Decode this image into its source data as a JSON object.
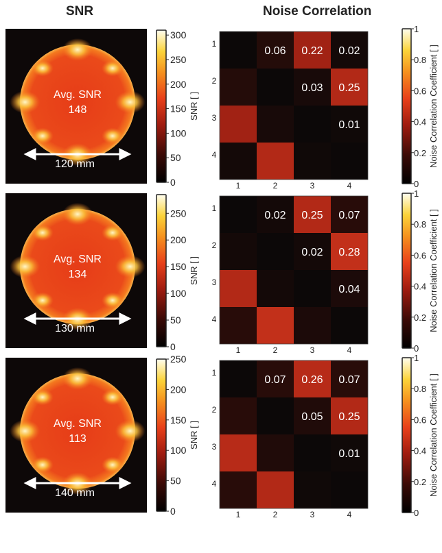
{
  "titles": {
    "snr": "SNR",
    "noise": "Noise Correlation"
  },
  "colors": {
    "background": "#0d0808",
    "phantom": "#e8401a",
    "arrow": "#ffffff"
  },
  "snr_colorbar_label": "SNR [ ]",
  "nc_colorbar_label": "Noise Correlation Coefficient [ ]",
  "rows": [
    {
      "avg_label": "Avg. SNR",
      "avg_value": "148",
      "diameter": "120 mm",
      "snr_ticks": [
        "0",
        "50",
        "100",
        "150",
        "200",
        "250",
        "300"
      ],
      "snr_max": 310,
      "nc_ticks": [
        "0",
        "0.2",
        "0.4",
        "0.6",
        "0.8",
        "1"
      ],
      "matrix_axis": [
        "1",
        "2",
        "3",
        "4"
      ],
      "matrix_labels": [
        [
          "",
          "0.06",
          "0.22",
          "0.02"
        ],
        [
          "",
          "",
          "0.03",
          "0.25"
        ],
        [
          "",
          "",
          "",
          "0.01"
        ],
        [
          "",
          "",
          "",
          ""
        ]
      ],
      "matrix_values": [
        [
          0.0,
          0.06,
          0.22,
          0.02
        ],
        [
          0.06,
          0.0,
          0.03,
          0.25
        ],
        [
          0.22,
          0.03,
          0.0,
          0.01
        ],
        [
          0.02,
          0.25,
          0.01,
          0.0
        ]
      ]
    },
    {
      "avg_label": "Avg. SNR",
      "avg_value": "134",
      "diameter": "130 mm",
      "snr_ticks": [
        "0",
        "50",
        "100",
        "150",
        "200",
        "250"
      ],
      "snr_max": 285,
      "nc_ticks": [
        "0",
        "0.2",
        "0.4",
        "0.6",
        "0.8",
        "1"
      ],
      "matrix_axis": [
        "1",
        "2",
        "3",
        "4"
      ],
      "matrix_labels": [
        [
          "",
          "0.02",
          "0.25",
          "0.07"
        ],
        [
          "",
          "",
          "0.02",
          "0.28"
        ],
        [
          "",
          "",
          "",
          "0.04"
        ],
        [
          "",
          "",
          "",
          ""
        ]
      ],
      "matrix_values": [
        [
          0.0,
          0.02,
          0.25,
          0.07
        ],
        [
          0.02,
          0.0,
          0.02,
          0.28
        ],
        [
          0.25,
          0.02,
          0.0,
          0.04
        ],
        [
          0.07,
          0.28,
          0.04,
          0.0
        ]
      ]
    },
    {
      "avg_label": "Avg. SNR",
      "avg_value": "113",
      "diameter": "140 mm",
      "snr_ticks": [
        "0",
        "50",
        "100",
        "150",
        "200",
        "250"
      ],
      "snr_max": 250,
      "nc_ticks": [
        "0",
        "0.2",
        "0.4",
        "0.6",
        "0.8",
        "1"
      ],
      "matrix_axis": [
        "1",
        "2",
        "3",
        "4"
      ],
      "matrix_labels": [
        [
          "",
          "0.07",
          "0.26",
          "0.07"
        ],
        [
          "",
          "",
          "0.05",
          "0.25"
        ],
        [
          "",
          "",
          "",
          "0.01"
        ],
        [
          "",
          "",
          "",
          ""
        ]
      ],
      "matrix_values": [
        [
          0.0,
          0.07,
          0.26,
          0.07
        ],
        [
          0.07,
          0.0,
          0.05,
          0.25
        ],
        [
          0.26,
          0.05,
          0.0,
          0.01
        ],
        [
          0.07,
          0.25,
          0.01,
          0.0
        ]
      ]
    }
  ]
}
